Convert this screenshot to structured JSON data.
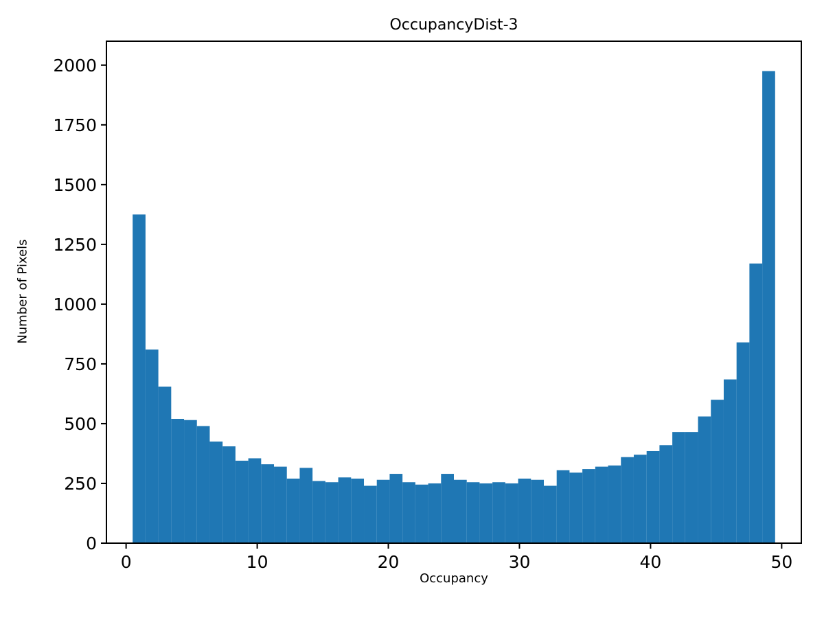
{
  "chart_data": {
    "type": "bar",
    "title": "OccupancyDist-3",
    "xlabel": "Occupancy",
    "ylabel": "Number of Pixels",
    "bar_color": "#1f77b4",
    "axis_color": "#000000",
    "xlim": [
      -1.5,
      51.5
    ],
    "ylim": [
      0,
      2100
    ],
    "xticks": [
      0,
      10,
      20,
      30,
      40,
      50
    ],
    "yticks": [
      0,
      250,
      500,
      750,
      1000,
      1250,
      1500,
      1750,
      2000
    ],
    "grid": false,
    "legend": "none",
    "bins": {
      "start": 0.5,
      "end": 49.5,
      "count": 50
    },
    "values": [
      1375,
      810,
      655,
      520,
      515,
      490,
      425,
      405,
      345,
      355,
      330,
      320,
      270,
      315,
      260,
      255,
      275,
      270,
      240,
      265,
      290,
      255,
      245,
      250,
      290,
      265,
      255,
      250,
      255,
      250,
      270,
      265,
      240,
      305,
      295,
      310,
      320,
      325,
      360,
      370,
      385,
      410,
      465,
      465,
      530,
      600,
      685,
      840,
      1170,
      1975
    ]
  }
}
